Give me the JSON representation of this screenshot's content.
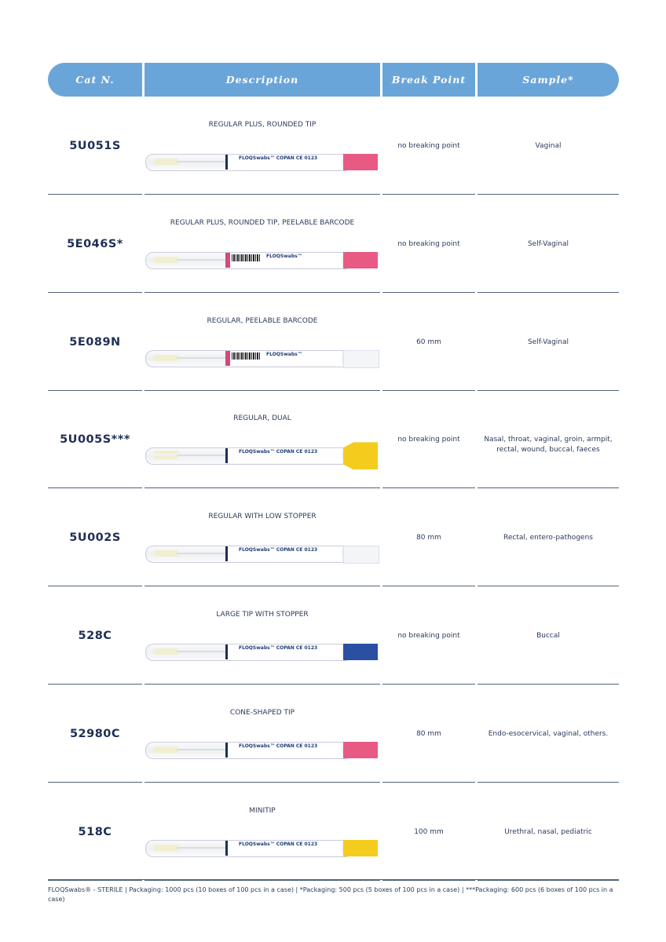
{
  "header": {
    "cat": "Cat N.",
    "description": "Description",
    "break_point": "Break Point",
    "sample": "Sample*"
  },
  "rows": [
    {
      "cat": "5U051S",
      "description": "REGULAR PLUS, ROUNDED TIP",
      "break_point": "no breaking point",
      "sample": "Vaginal",
      "cap_color": "#e85a84",
      "label_brand": "FLOQSwabs™   COPAN   CE 0123",
      "barcode": false
    },
    {
      "cat": "5E046S*",
      "description": "REGULAR PLUS, ROUNDED TIP, PEELABLE BARCODE",
      "break_point": "no breaking point",
      "sample": "Self-Vaginal",
      "cap_color": "#e85a84",
      "label_brand": "FLOQSwabs™",
      "barcode": true
    },
    {
      "cat": "5E089N",
      "description": "REGULAR, PEELABLE BARCODE",
      "break_point": "60 mm",
      "sample": "Self-Vaginal",
      "cap_color": "#f4f5f7",
      "label_brand": "FLOQSwabs™",
      "barcode": true
    },
    {
      "cat": "5U005S***",
      "description": "REGULAR, DUAL",
      "break_point": "no breaking point",
      "sample": "Nasal, throat, vaginal, groin, armpit, rectal, wound, buccal, faeces",
      "cap_color": "#f3cc1e",
      "label_brand": "FLOQSwabs™   COPAN   CE 0123",
      "barcode": false
    },
    {
      "cat": "5U002S",
      "description": "REGULAR WITH LOW STOPPER",
      "break_point": "80 mm",
      "sample": "Rectal, entero-pathogens",
      "cap_color": "#f4f5f7",
      "label_brand": "FLOQSwabs™   COPAN   CE 0123",
      "barcode": false
    },
    {
      "cat": "528C",
      "description": "LARGE TIP WITH STOPPER",
      "break_point": "no breaking point",
      "sample": "Buccal",
      "cap_color": "#2a4fa3",
      "label_brand": "FLOQSwabs™   COPAN   CE 0123",
      "barcode": false
    },
    {
      "cat": "52980C",
      "description": "CONE-SHAPED TIP",
      "break_point": "80 mm",
      "sample": "Endo-esocervical, vaginal, others.",
      "cap_color": "#e85a84",
      "label_brand": "FLOQSwabs™   COPAN   CE 0123",
      "barcode": false
    },
    {
      "cat": "518C",
      "description": "MINITIP",
      "break_point": "100 mm",
      "sample": "Urethral, nasal, pediatric",
      "cap_color": "#f3cc1e",
      "label_brand": "FLOQSwabs™   COPAN   CE 0123",
      "barcode": false
    }
  ],
  "footer": "FLOQSwabs® - STERILE | Packaging: 1000 pcs (10 boxes of 100 pcs in a case) | *Packaging: 500 pcs (5 boxes of 100 pcs in a case) | ***Packaging: 600 pcs (6 boxes of 100 pcs in a case)"
}
